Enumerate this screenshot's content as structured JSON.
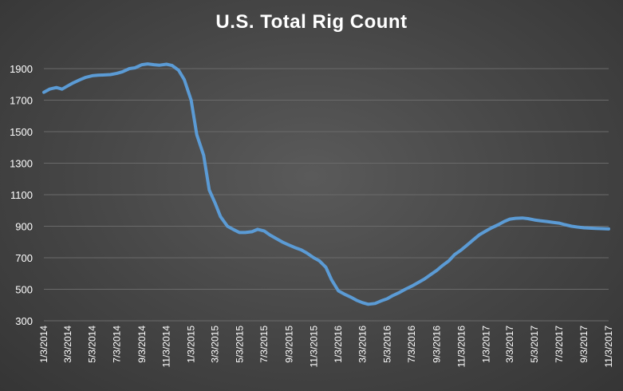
{
  "chart_data": {
    "type": "line",
    "title": "U.S. Total Rig Count",
    "xlabel": "",
    "ylabel": "",
    "ylim": [
      300,
      1900
    ],
    "yticks": [
      300,
      500,
      700,
      900,
      1100,
      1300,
      1500,
      1700,
      1900
    ],
    "xticks": [
      "1/3/2014",
      "3/3/2014",
      "5/3/2014",
      "7/3/2014",
      "9/3/2014",
      "11/3/2014",
      "1/3/2015",
      "3/3/2015",
      "5/3/2015",
      "7/3/2015",
      "9/3/2015",
      "11/3/2015",
      "1/3/2016",
      "3/3/2016",
      "5/3/2016",
      "7/3/2016",
      "9/3/2016",
      "11/3/2016",
      "1/3/2017",
      "3/3/2017",
      "5/3/2017",
      "7/3/2017",
      "9/3/2017",
      "11/3/2017"
    ],
    "grid": true,
    "legend": "none",
    "colors": {
      "line": "#5b9bd5",
      "grid": "#6a6a6a",
      "text": "#ffffff"
    },
    "series": [
      {
        "x": [
          "1/3/2014",
          "1/17/2014",
          "2/3/2014",
          "2/17/2014",
          "3/3/2014",
          "3/17/2014",
          "4/3/2014",
          "4/17/2014",
          "5/3/2014",
          "5/17/2014",
          "6/3/2014",
          "6/17/2014",
          "7/3/2014",
          "7/17/2014",
          "8/3/2014",
          "8/17/2014",
          "9/3/2014",
          "9/17/2014",
          "10/3/2014",
          "10/17/2014",
          "11/3/2014",
          "11/17/2014",
          "12/3/2014",
          "12/17/2014",
          "1/3/2015",
          "1/17/2015",
          "2/3/2015",
          "2/17/2015",
          "3/3/2015",
          "3/17/2015",
          "4/3/2015",
          "4/17/2015",
          "5/3/2015",
          "5/17/2015",
          "6/3/2015",
          "6/17/2015",
          "7/3/2015",
          "7/17/2015",
          "8/3/2015",
          "8/17/2015",
          "9/3/2015",
          "9/17/2015",
          "10/3/2015",
          "10/17/2015",
          "11/3/2015",
          "11/17/2015",
          "12/3/2015",
          "12/17/2015",
          "1/3/2016",
          "1/17/2016",
          "2/3/2016",
          "2/17/2016",
          "3/3/2016",
          "3/17/2016",
          "4/3/2016",
          "4/17/2016",
          "5/3/2016",
          "5/17/2016",
          "6/3/2016",
          "6/17/2016",
          "7/3/2016",
          "7/17/2016",
          "8/3/2016",
          "8/17/2016",
          "9/3/2016",
          "9/17/2016",
          "10/3/2016",
          "10/17/2016",
          "11/3/2016",
          "11/17/2016",
          "12/3/2016",
          "12/17/2016",
          "1/3/2017",
          "1/17/2017",
          "2/3/2017",
          "2/17/2017",
          "3/3/2017",
          "3/17/2017",
          "4/3/2017",
          "4/17/2017",
          "5/3/2017",
          "5/17/2017",
          "6/3/2017",
          "6/17/2017",
          "7/3/2017",
          "7/17/2017",
          "8/3/2017",
          "8/17/2017",
          "9/3/2017",
          "9/17/2017",
          "10/3/2017",
          "10/17/2017",
          "11/3/2017"
        ],
        "values": [
          1750,
          1770,
          1780,
          1770,
          1790,
          1810,
          1830,
          1845,
          1855,
          1858,
          1860,
          1862,
          1870,
          1880,
          1900,
          1905,
          1925,
          1930,
          1925,
          1922,
          1928,
          1920,
          1890,
          1830,
          1700,
          1480,
          1350,
          1130,
          1050,
          960,
          900,
          880,
          860,
          860,
          865,
          880,
          870,
          845,
          820,
          800,
          780,
          765,
          750,
          730,
          700,
          680,
          640,
          560,
          490,
          470,
          450,
          430,
          415,
          405,
          410,
          425,
          440,
          460,
          480,
          500,
          520,
          540,
          565,
          590,
          620,
          650,
          680,
          720,
          750,
          780,
          815,
          845,
          870,
          890,
          910,
          930,
          945,
          950,
          952,
          948,
          940,
          935,
          930,
          925,
          920,
          910,
          900,
          895,
          890,
          888,
          886,
          885,
          883
        ]
      }
    ]
  }
}
